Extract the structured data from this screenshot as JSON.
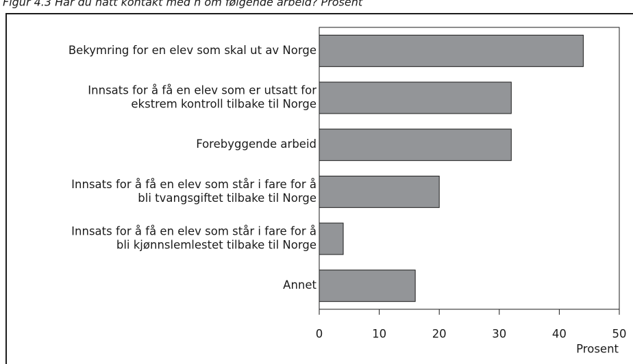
{
  "chart_data": {
    "type": "barh",
    "title": "Figur 4.3 Har du hatt kontakt med h om følgende arbeid? Prosent",
    "categories": [
      [
        "Bekymring for en elev som skal ut av Norge"
      ],
      [
        "Innsats for å få en elev som er utsatt for",
        "ekstrem kontroll tilbake til Norge"
      ],
      [
        "Forebyggende arbeid"
      ],
      [
        "Innsats for å få en elev som står i fare for å",
        "bli tvangsgiftet tilbake til Norge"
      ],
      [
        "Innsats for å få en elev som står i fare for å",
        "bli kjønnslemlestet tilbake til Norge"
      ],
      [
        "Annet"
      ]
    ],
    "values": [
      44,
      32,
      32,
      20,
      4,
      16
    ],
    "color": "#939598",
    "xlabel": "Prosent",
    "xlim": [
      0,
      50
    ],
    "xticks": [
      0,
      10,
      20,
      30,
      40,
      50
    ]
  }
}
